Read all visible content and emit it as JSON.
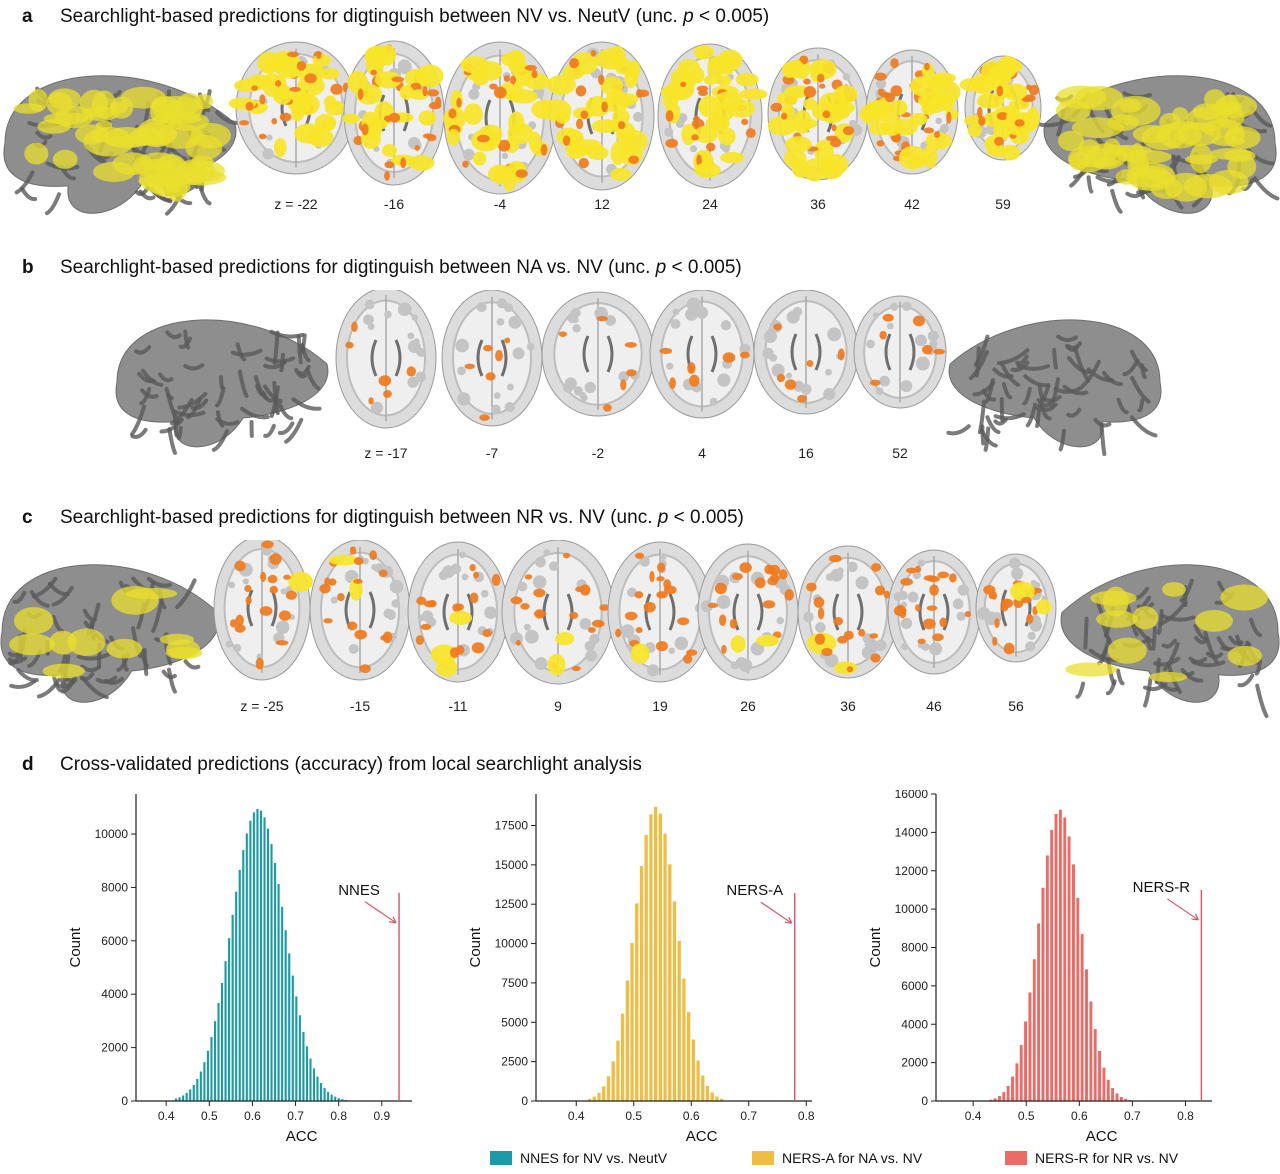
{
  "panels": {
    "a": {
      "letter": "a",
      "title_pre": "Searchlight-based predictions for digtinguish between NV vs. NeutV (unc. ",
      "title_p": "p",
      "title_post": " < 0.005)",
      "z_labels": [
        "z = -22",
        "-16",
        "-4",
        "12",
        "24",
        "36",
        "42",
        "59"
      ]
    },
    "b": {
      "letter": "b",
      "title_pre": "Searchlight-based predictions for digtinguish between NA vs. NV (unc. ",
      "title_p": "p",
      "title_post": " < 0.005)",
      "z_labels": [
        "z = -17",
        "-7",
        "-2",
        "4",
        "16",
        "52"
      ]
    },
    "c": {
      "letter": "c",
      "title_pre": "Searchlight-based predictions for digtinguish between NR vs. NV (unc. ",
      "title_p": "p",
      "title_post": " < 0.005)",
      "z_labels": [
        "z = -25",
        "-15",
        "-11",
        "9",
        "19",
        "26",
        "36",
        "46",
        "56"
      ]
    },
    "d": {
      "letter": "d",
      "title": "Cross-validated predictions (accuracy) from local searchlight analysis"
    }
  },
  "colors": {
    "teal": "#1a9ba6",
    "gold": "#f0bd44",
    "salmon": "#eb6b67",
    "line": "#d9536a",
    "activation_orange": "#f07a1c",
    "activation_yellow": "#f7e528"
  },
  "chart_data": [
    {
      "type": "bar",
      "name": "NNES for NV vs. NeutV",
      "color": "#1a9ba6",
      "xlabel": "ACC",
      "ylabel": "Count",
      "xlim": [
        0.33,
        0.97
      ],
      "ylim": [
        0,
        11500
      ],
      "xticks": [
        "0.4",
        "0.5",
        "0.6",
        "0.7",
        "0.8",
        "0.9"
      ],
      "yticks": [
        "0",
        "2000",
        "4000",
        "6000",
        "8000",
        "10000"
      ],
      "mean": 0.61,
      "sd": 0.062,
      "peak": 10950,
      "xmin": 0.42,
      "xmax": 0.82,
      "marker": {
        "label": "NNES",
        "x": 0.94,
        "top": 7800
      }
    },
    {
      "type": "bar",
      "name": "NERS-A for NA vs. NV",
      "color": "#f0bd44",
      "xlabel": "ACC",
      "ylabel": "Count",
      "xlim": [
        0.33,
        0.81
      ],
      "ylim": [
        0,
        19500
      ],
      "xticks": [
        "0.4",
        "0.5",
        "0.6",
        "0.7",
        "0.8"
      ],
      "yticks": [
        "0",
        "2500",
        "5000",
        "7500",
        "10000",
        "12500",
        "15000",
        "17500"
      ],
      "mean": 0.535,
      "sd": 0.037,
      "peak": 18700,
      "xmin": 0.42,
      "xmax": 0.65,
      "marker": {
        "label": "NERS-A",
        "x": 0.78,
        "top": 13200
      }
    },
    {
      "type": "bar",
      "name": "NERS-R for NR vs. NV",
      "color": "#eb6b67",
      "xlabel": "ACC",
      "ylabel": "Count",
      "xlim": [
        0.33,
        0.85
      ],
      "ylim": [
        0,
        16000
      ],
      "xticks": [
        "0.4",
        "0.5",
        "0.6",
        "0.7",
        "0.8"
      ],
      "yticks": [
        "0",
        "2000",
        "4000",
        "6000",
        "8000",
        "10000",
        "12000",
        "14000",
        "16000"
      ],
      "mean": 0.56,
      "sd": 0.04,
      "peak": 15200,
      "xmin": 0.43,
      "xmax": 0.7,
      "marker": {
        "label": "NERS-R",
        "x": 0.83,
        "top": 11000
      }
    }
  ],
  "legend": [
    {
      "label": "NNES for NV vs. NeutV",
      "color": "#1a9ba6"
    },
    {
      "label": "NERS-A for NA vs. NV",
      "color": "#f0bd44"
    },
    {
      "label": "NERS-R for NR vs. NV",
      "color": "#eb6b67"
    }
  ]
}
